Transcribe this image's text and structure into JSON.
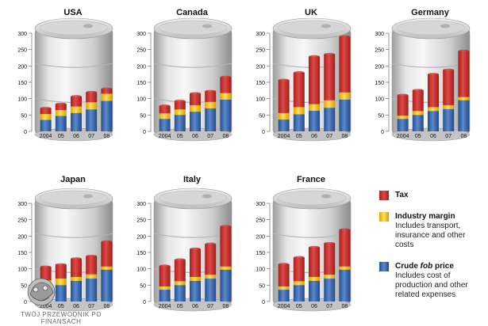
{
  "colors": {
    "tax": "#d33a36",
    "margin": "#f6cf1e",
    "crude": "#3f6fb5",
    "barrel": "#d9d9d9",
    "text": "#111111"
  },
  "axis": {
    "ticks": [
      "0",
      "50",
      "100",
      "150",
      "200",
      "250",
      "300"
    ],
    "xlabels": [
      "2004",
      "05",
      "06",
      "07",
      "08"
    ]
  },
  "legend": {
    "tax": {
      "title": "Tax",
      "desc": ""
    },
    "margin": {
      "title": "Industry margin",
      "desc": "Includes transport, insurance and other costs"
    },
    "crude": {
      "title_pre": "Crude ",
      "title_italic": "fob",
      "title_post": " price",
      "desc": "Includes cost of production and other related expenses"
    }
  },
  "watermark": {
    "line1": "TWÓJ PRZEWODNIK PO",
    "line2": "FINANSACH"
  },
  "chart_data": [
    {
      "type": "bar",
      "stacked": true,
      "title": "USA",
      "categories": [
        "2004",
        "05",
        "06",
        "07",
        "08"
      ],
      "ylim": [
        0,
        300
      ],
      "series": [
        {
          "name": "Crude fob price",
          "values": [
            35,
            47,
            56,
            67,
            93
          ]
        },
        {
          "name": "Industry margin",
          "values": [
            18,
            18,
            20,
            22,
            22
          ]
        },
        {
          "name": "Tax",
          "values": [
            17,
            18,
            30,
            30,
            14
          ]
        }
      ]
    },
    {
      "type": "bar",
      "stacked": true,
      "title": "Canada",
      "categories": [
        "2004",
        "05",
        "06",
        "07",
        "08"
      ],
      "ylim": [
        0,
        300
      ],
      "series": [
        {
          "name": "Crude fob price",
          "values": [
            38,
            50,
            60,
            70,
            97
          ]
        },
        {
          "name": "Industry margin",
          "values": [
            17,
            17,
            20,
            20,
            20
          ]
        },
        {
          "name": "Tax",
          "values": [
            22,
            25,
            35,
            32,
            48
          ]
        }
      ]
    },
    {
      "type": "bar",
      "stacked": true,
      "title": "UK",
      "categories": [
        "2004",
        "05",
        "06",
        "07",
        "08"
      ],
      "ylim": [
        0,
        300
      ],
      "series": [
        {
          "name": "Crude fob price",
          "values": [
            36,
            52,
            63,
            72,
            97
          ]
        },
        {
          "name": "Industry margin",
          "values": [
            20,
            22,
            20,
            23,
            22
          ]
        },
        {
          "name": "Tax",
          "values": [
            100,
            105,
            145,
            140,
            170
          ]
        }
      ]
    },
    {
      "type": "bar",
      "stacked": true,
      "title": "Germany",
      "categories": [
        "2004",
        "05",
        "06",
        "07",
        "08"
      ],
      "ylim": [
        0,
        300
      ],
      "series": [
        {
          "name": "Crude fob price",
          "values": [
            38,
            50,
            62,
            68,
            95
          ]
        },
        {
          "name": "Industry margin",
          "values": [
            10,
            12,
            12,
            12,
            10
          ]
        },
        {
          "name": "Tax",
          "values": [
            62,
            63,
            100,
            107,
            140
          ]
        }
      ]
    },
    {
      "type": "bar",
      "stacked": true,
      "title": "Japan",
      "categories": [
        "2004",
        "05",
        "06",
        "07",
        "08"
      ],
      "ylim": [
        0,
        300
      ],
      "series": [
        {
          "name": "Crude fob price",
          "values": [
            38,
            50,
            63,
            70,
            97
          ]
        },
        {
          "name": "Industry margin",
          "values": [
            27,
            20,
            12,
            13,
            10
          ]
        },
        {
          "name": "Tax",
          "values": [
            40,
            42,
            55,
            55,
            75
          ]
        }
      ]
    },
    {
      "type": "bar",
      "stacked": true,
      "title": "Italy",
      "categories": [
        "2004",
        "05",
        "06",
        "07",
        "08"
      ],
      "ylim": [
        0,
        300
      ],
      "series": [
        {
          "name": "Crude fob price",
          "values": [
            36,
            50,
            63,
            70,
            97
          ]
        },
        {
          "name": "Industry margin",
          "values": [
            10,
            12,
            12,
            12,
            10
          ]
        },
        {
          "name": "Tax",
          "values": [
            62,
            65,
            85,
            93,
            122
          ]
        }
      ]
    },
    {
      "type": "bar",
      "stacked": true,
      "title": "France",
      "categories": [
        "2004",
        "05",
        "06",
        "07",
        "08"
      ],
      "ylim": [
        0,
        300
      ],
      "series": [
        {
          "name": "Crude fob price",
          "values": [
            36,
            50,
            63,
            70,
            97
          ]
        },
        {
          "name": "Industry margin",
          "values": [
            10,
            12,
            12,
            12,
            10
          ]
        },
        {
          "name": "Tax",
          "values": [
            67,
            72,
            90,
            95,
            112
          ]
        }
      ]
    }
  ]
}
